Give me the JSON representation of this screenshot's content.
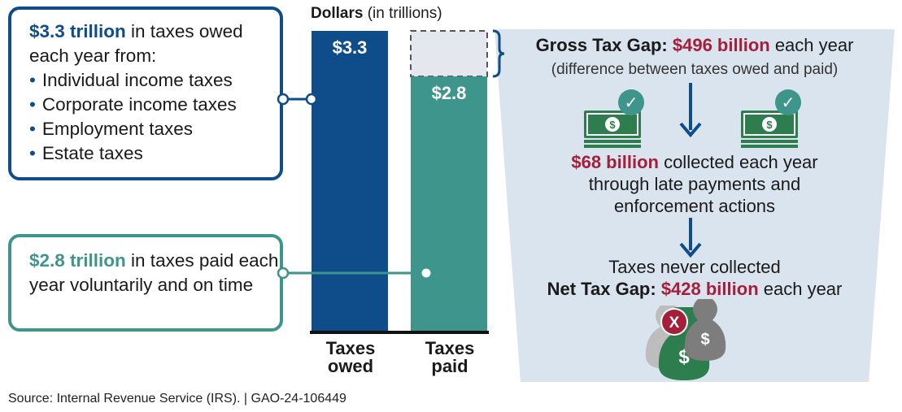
{
  "chart_data": {
    "type": "bar",
    "stacked": false,
    "axis_title": "Dollars",
    "axis_unit": "(in trillions)",
    "categories": [
      "Taxes owed",
      "Taxes paid"
    ],
    "category_lines": [
      [
        "Taxes",
        "owed"
      ],
      [
        "Taxes",
        "paid"
      ]
    ],
    "values": [
      3.3,
      2.8
    ],
    "value_labels": [
      "$3.3",
      "$2.8"
    ],
    "gap_segment": {
      "category": "Taxes paid",
      "from": 2.8,
      "to": 3.3,
      "style": "dashed"
    },
    "ylim": [
      0,
      3.3
    ],
    "colors": {
      "owed": "#0f4c8a",
      "paid": "#3e958c",
      "gap": "#e4e8ee",
      "axis": "#111111"
    }
  },
  "callouts": {
    "owed": {
      "amount": "$3.3 trillion",
      "text": " in taxes owed each year from:",
      "items": [
        "Individual income taxes",
        "Corporate income taxes",
        "Employment taxes",
        "Estate taxes"
      ]
    },
    "paid": {
      "amount": "$2.8 trillion",
      "text": " in taxes paid each year voluntarily and on time"
    }
  },
  "gap_panel": {
    "gross_label": "Gross Tax Gap: ",
    "gross_amount": "$496 billion",
    "gross_suffix": " each year",
    "gross_note": "(difference between taxes owed and paid)",
    "collected_amount": "$68 billion",
    "collected_text_1": " collected each year",
    "collected_text_2": "through late payments and",
    "collected_text_3": "enforcement actions",
    "never_collected": "Taxes never collected",
    "net_label": "Net Tax Gap: ",
    "net_amount": "$428 billion",
    "net_suffix": " each year"
  },
  "icons": {
    "money_symbol": "$",
    "check_symbol": "✓",
    "x_symbol": "X"
  },
  "source": "Source: Internal Revenue Service (IRS).  |  GAO-24-106449"
}
